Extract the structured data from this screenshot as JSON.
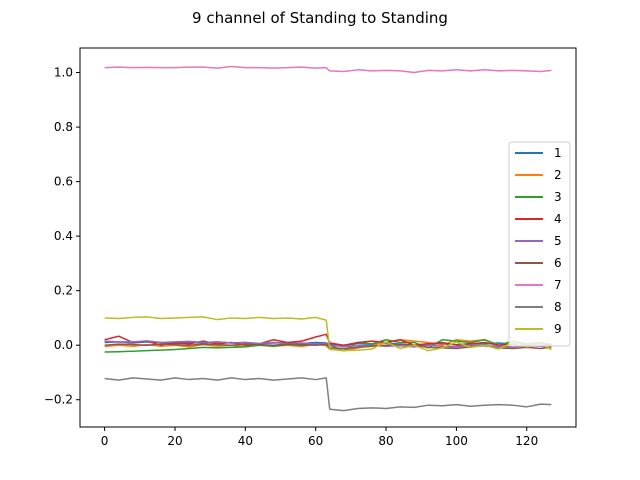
{
  "chart_data": {
    "type": "line",
    "title": "9 channel of Standing to Standing",
    "xlabel": "",
    "ylabel": "",
    "xlim": [
      -7,
      134
    ],
    "ylim": [
      -0.3,
      1.09
    ],
    "x_ticks": [
      0,
      20,
      40,
      60,
      80,
      100,
      120
    ],
    "y_ticks": [
      1.0,
      0.8,
      0.6,
      0.4,
      0.2,
      0.0,
      -0.2
    ],
    "y_tick_labels": [
      "1.0",
      "0.8",
      "0.6",
      "0.4",
      "0.2",
      "0.0",
      "−0.2"
    ],
    "x_tick_labels": [
      "0",
      "20",
      "40",
      "60",
      "80",
      "100",
      "120"
    ],
    "grid": false,
    "legend_position": "right",
    "x": [
      0,
      4,
      8,
      12,
      16,
      20,
      24,
      28,
      32,
      36,
      40,
      44,
      48,
      52,
      56,
      60,
      63,
      64,
      68,
      72,
      76,
      80,
      84,
      88,
      92,
      96,
      100,
      104,
      108,
      112,
      116,
      120,
      124,
      127
    ],
    "series": [
      {
        "name": "1",
        "color": "#1f77b4",
        "values": [
          0.01,
          0.012,
          0.008,
          0.012,
          0.01,
          0.006,
          0.01,
          0.008,
          0.012,
          0.008,
          0.01,
          0.006,
          0.008,
          0.01,
          0.006,
          0.01,
          0.008,
          0.004,
          0.0,
          0.006,
          0.004,
          0.008,
          0.004,
          0.0,
          0.006,
          0.004,
          0.002,
          0.006,
          0.004,
          0.008,
          0.004,
          0.006,
          0.008,
          0.004
        ]
      },
      {
        "name": "2",
        "color": "#ff7f0e",
        "values": [
          -0.005,
          0.0,
          -0.004,
          0.002,
          -0.004,
          0.0,
          -0.006,
          0.002,
          -0.004,
          0.0,
          -0.005,
          0.002,
          -0.004,
          0.0,
          -0.005,
          0.004,
          -0.002,
          -0.015,
          -0.02,
          -0.01,
          0.0,
          0.01,
          0.02,
          0.015,
          0.01,
          0.0,
          0.02,
          0.015,
          0.02,
          0.0,
          0.01,
          0.005,
          0.0,
          -0.015
        ]
      },
      {
        "name": "3",
        "color": "#2ca02c",
        "values": [
          -0.025,
          -0.024,
          -0.022,
          -0.02,
          -0.018,
          -0.016,
          -0.012,
          -0.008,
          -0.01,
          -0.008,
          -0.006,
          0.0,
          -0.004,
          0.002,
          0.0,
          0.002,
          0.006,
          0.0,
          -0.02,
          0.01,
          0.005,
          0.02,
          0.01,
          0.01,
          -0.01,
          0.02,
          0.015,
          0.01,
          0.02,
          0.0,
          0.015,
          0.005,
          0.01,
          0.0
        ]
      },
      {
        "name": "4",
        "color": "#d62728",
        "values": [
          0.02,
          0.033,
          0.01,
          0.015,
          0.0,
          0.01,
          0.005,
          0.015,
          0.005,
          0.01,
          0.0,
          0.005,
          0.02,
          0.01,
          0.015,
          0.03,
          0.04,
          0.008,
          0.0,
          0.01,
          0.015,
          0.01,
          0.02,
          0.0,
          0.005,
          0.01,
          0.0,
          0.005,
          0.01,
          0.0,
          0.005,
          0.0,
          0.005,
          0.0
        ]
      },
      {
        "name": "5",
        "color": "#9467bd",
        "values": [
          0.015,
          0.012,
          0.012,
          0.016,
          0.01,
          0.012,
          0.014,
          0.01,
          0.012,
          0.008,
          0.01,
          0.006,
          0.01,
          0.006,
          0.008,
          0.004,
          0.006,
          0.0,
          -0.005,
          -0.002,
          0.0,
          -0.004,
          -0.002,
          -0.006,
          0.0,
          -0.004,
          -0.006,
          0.0,
          -0.002,
          -0.004,
          -0.006,
          -0.002,
          -0.004,
          -0.006
        ]
      },
      {
        "name": "6",
        "color": "#8c564b",
        "values": [
          0.0,
          0.004,
          0.002,
          0.0,
          0.004,
          0.002,
          0.0,
          0.004,
          0.002,
          0.0,
          0.004,
          0.002,
          0.0,
          0.004,
          0.002,
          0.0,
          0.003,
          -0.01,
          -0.012,
          -0.008,
          -0.004,
          0.0,
          0.004,
          0.0,
          -0.008,
          -0.01,
          -0.012,
          -0.006,
          -0.002,
          -0.01,
          -0.012,
          -0.008,
          -0.012,
          -0.006
        ]
      },
      {
        "name": "7",
        "color": "#e377c2",
        "values": [
          1.018,
          1.02,
          1.018,
          1.019,
          1.018,
          1.018,
          1.02,
          1.02,
          1.016,
          1.022,
          1.018,
          1.018,
          1.016,
          1.018,
          1.02,
          1.016,
          1.018,
          1.006,
          1.004,
          1.01,
          1.006,
          1.008,
          1.006,
          1.0,
          1.008,
          1.006,
          1.01,
          1.006,
          1.01,
          1.006,
          1.008,
          1.006,
          1.004,
          1.008
        ]
      },
      {
        "name": "8",
        "color": "#7f7f7f",
        "values": [
          -0.122,
          -0.128,
          -0.12,
          -0.124,
          -0.128,
          -0.12,
          -0.126,
          -0.122,
          -0.128,
          -0.12,
          -0.126,
          -0.122,
          -0.128,
          -0.124,
          -0.12,
          -0.126,
          -0.12,
          -0.235,
          -0.24,
          -0.232,
          -0.23,
          -0.232,
          -0.226,
          -0.228,
          -0.22,
          -0.222,
          -0.218,
          -0.224,
          -0.22,
          -0.218,
          -0.22,
          -0.226,
          -0.216,
          -0.218
        ]
      },
      {
        "name": "9",
        "color": "#bcbd22",
        "values": [
          0.1,
          0.098,
          0.102,
          0.104,
          0.098,
          0.1,
          0.102,
          0.104,
          0.094,
          0.1,
          0.098,
          0.102,
          0.098,
          0.1,
          0.096,
          0.102,
          0.092,
          -0.015,
          -0.02,
          -0.018,
          -0.014,
          0.012,
          -0.012,
          0.0,
          -0.02,
          -0.01,
          0.012,
          -0.008,
          0.0,
          -0.014,
          0.01,
          -0.006,
          0.004,
          -0.014
        ]
      }
    ]
  }
}
